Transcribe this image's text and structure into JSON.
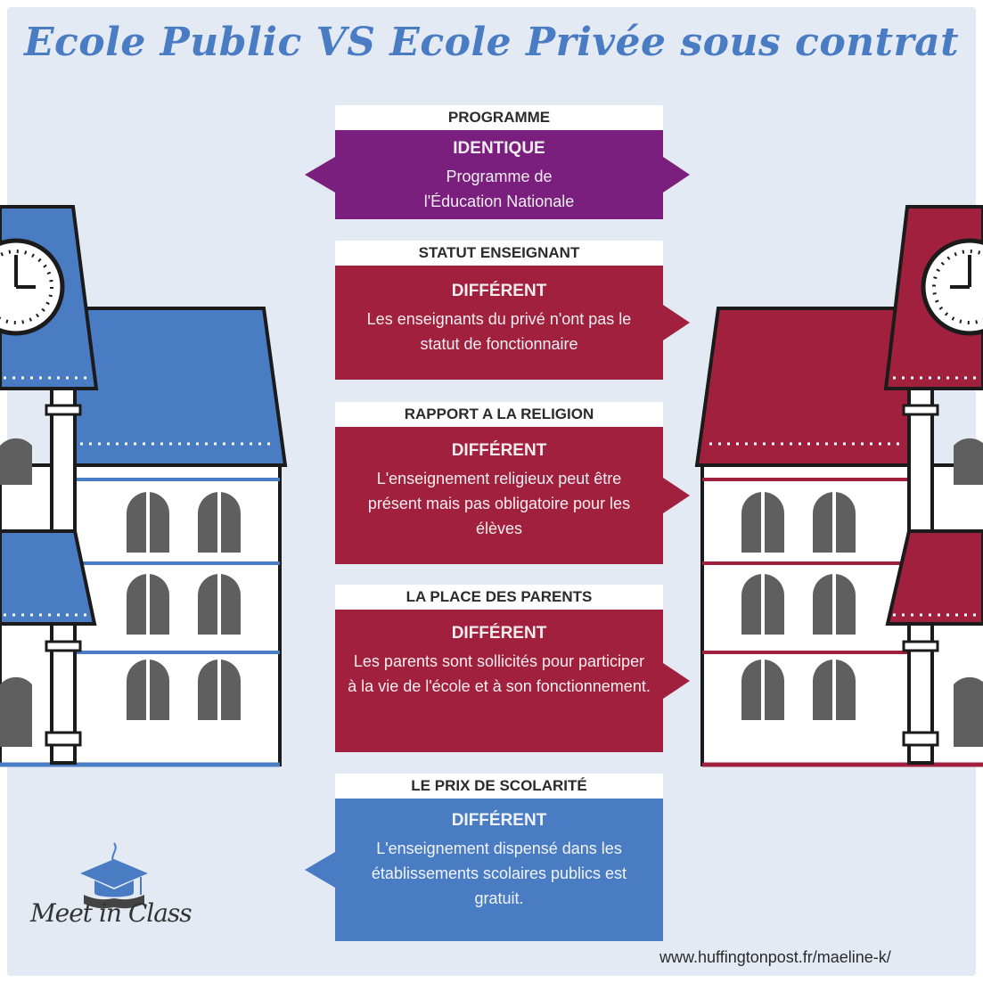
{
  "title": "Ecole Public VS Ecole Privée sous contrat",
  "colors": {
    "background": "#e4eaf4",
    "title": "#4a7cc4",
    "public_building": "#4a7cc4",
    "private_building": "#a0203e",
    "purple": "#7a1f7e",
    "crimson": "#a0203e",
    "blue": "#4a7cc4"
  },
  "cards": [
    {
      "header": "PROGRAMME",
      "verdict": "IDENTIQUE",
      "description": "Programme de l'Éducation Nationale",
      "color": "#7a1f7e",
      "arrows": "both"
    },
    {
      "header": "STATUT ENSEIGNANT",
      "verdict": "DIFFÉRENT",
      "description": "Les enseignants du privé n'ont pas le statut de fonctionnaire",
      "color": "#a0203e",
      "arrows": "right"
    },
    {
      "header": "RAPPORT A LA RELIGION",
      "verdict": "DIFFÉRENT",
      "description": "L'enseignement religieux peut être présent mais pas obligatoire pour les élèves",
      "color": "#a0203e",
      "arrows": "right"
    },
    {
      "header": "LA PLACE DES PARENTS",
      "verdict": "DIFFÉRENT",
      "description": "Les parents sont sollicités pour participer à la vie de l'école et à son fonctionnement.",
      "color": "#a0203e",
      "arrows": "right"
    },
    {
      "header": "LE PRIX DE SCOLARITÉ",
      "verdict": "DIFFÉRENT",
      "description": "L'enseignement dispensé dans les établissements scolaires publics est gratuit.",
      "color": "#4a7cc4",
      "arrows": "left"
    }
  ],
  "logo": {
    "text": "Meet in Class",
    "icon": "graduation-cap-icon"
  },
  "source": "www.huffingtonpost.fr/maeline-k/"
}
